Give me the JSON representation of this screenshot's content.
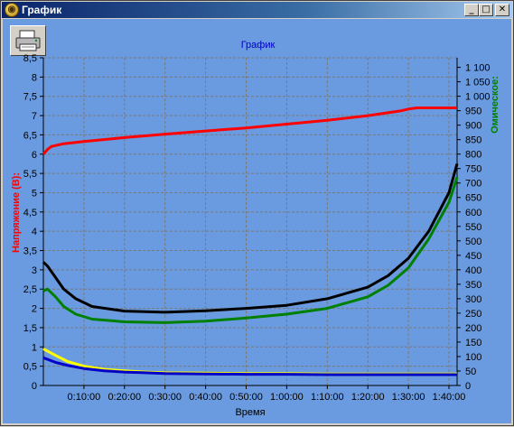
{
  "window": {
    "title": "График",
    "minimize_glyph": "_",
    "maximize_glyph": "□",
    "close_glyph": "✕",
    "app_icon": "app-icon",
    "print_icon": "printer-icon"
  },
  "colors": {
    "background": "#6a9adf",
    "grid": "#7a7a7a",
    "voltage_axis": "#ff0000",
    "ohmic_axis": "#008000",
    "title": "#0000c8"
  },
  "chart_data": {
    "type": "line",
    "title": "График",
    "xlabel": "Время",
    "ylabel_left": "Напряжение (В):",
    "ylabel_right": "Омическое:",
    "x_ticks": [
      "0:10:00",
      "0:20:00",
      "0:30:00",
      "0:40:00",
      "0:50:00",
      "1:00:00",
      "1:10:00",
      "1:20:00",
      "1:30:00",
      "1:40:00"
    ],
    "x_range_min": [
      0,
      102
    ],
    "y_left_ticks": [
      "0",
      "0,5",
      "1",
      "1,5",
      "2",
      "2,5",
      "3",
      "3,5",
      "4",
      "4,5",
      "5",
      "5,5",
      "6",
      "6,5",
      "7",
      "7,5",
      "8",
      "8,5"
    ],
    "y_left_range": [
      0,
      8.5
    ],
    "y_right_ticks": [
      "0",
      "50",
      "100",
      "150",
      "200",
      "250",
      "300",
      "350",
      "400",
      "450",
      "500",
      "550",
      "600",
      "650",
      "700",
      "750",
      "800",
      "850",
      "900",
      "950",
      "1 000",
      "1 050",
      "1 100"
    ],
    "y_right_range": [
      0,
      1133
    ],
    "grid": true,
    "series": [
      {
        "color": "#ff0000",
        "axis": "left",
        "x": [
          0,
          1,
          2,
          5,
          10,
          20,
          30,
          40,
          50,
          60,
          70,
          80,
          88,
          90,
          92,
          98,
          102
        ],
        "y": [
          6.0,
          6.12,
          6.2,
          6.27,
          6.33,
          6.43,
          6.52,
          6.6,
          6.68,
          6.78,
          6.88,
          7.0,
          7.12,
          7.17,
          7.2,
          7.2,
          7.2
        ]
      },
      {
        "color": "#000000",
        "axis": "left",
        "x": [
          0,
          1,
          3,
          5,
          8,
          12,
          20,
          30,
          40,
          50,
          60,
          70,
          80,
          85,
          90,
          95,
          100,
          102
        ],
        "y": [
          3.2,
          3.1,
          2.8,
          2.5,
          2.25,
          2.05,
          1.93,
          1.9,
          1.94,
          2.0,
          2.08,
          2.25,
          2.55,
          2.85,
          3.3,
          4.0,
          5.0,
          5.75
        ]
      },
      {
        "color": "#008000",
        "axis": "left",
        "x": [
          0,
          1,
          3,
          5,
          8,
          12,
          20,
          30,
          40,
          50,
          60,
          70,
          80,
          85,
          90,
          95,
          100,
          102
        ],
        "y": [
          2.45,
          2.5,
          2.3,
          2.05,
          1.85,
          1.72,
          1.65,
          1.63,
          1.67,
          1.75,
          1.85,
          2.0,
          2.3,
          2.6,
          3.05,
          3.8,
          4.75,
          5.4
        ]
      },
      {
        "color": "#ffff00",
        "axis": "left",
        "x": [
          0,
          3,
          6,
          10,
          15,
          20,
          25,
          30,
          40,
          50,
          60,
          70,
          80,
          90,
          102
        ],
        "y": [
          0.95,
          0.78,
          0.62,
          0.5,
          0.42,
          0.38,
          0.35,
          0.33,
          0.32,
          0.31,
          0.31,
          0.3,
          0.3,
          0.3,
          0.3
        ]
      },
      {
        "color": "#0000c8",
        "axis": "left",
        "x": [
          0,
          3,
          6,
          10,
          15,
          20,
          25,
          30,
          40,
          50,
          60,
          70,
          80,
          90,
          102
        ],
        "y": [
          0.72,
          0.6,
          0.52,
          0.44,
          0.38,
          0.35,
          0.33,
          0.31,
          0.3,
          0.29,
          0.29,
          0.28,
          0.28,
          0.28,
          0.28
        ]
      }
    ]
  }
}
